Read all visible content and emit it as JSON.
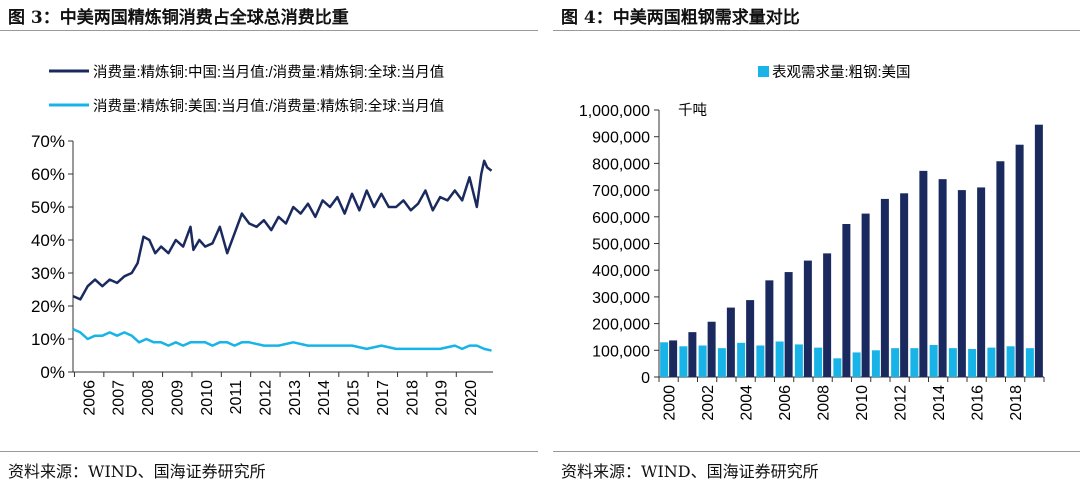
{
  "left": {
    "title": "图 3：中美两国精炼铜消费占全球总消费比重",
    "source": "资料来源：WIND、国海证券研究所"
  },
  "right": {
    "title": "图 4：中美两国粗钢需求量对比",
    "source": "资料来源：WIND、国海证券研究所"
  },
  "colors": {
    "navy": "#1a2a5e",
    "cyan": "#18b4e8"
  },
  "chart_data": [
    {
      "type": "line",
      "title": "",
      "xlabel": "",
      "ylabel": "",
      "ylim": [
        0,
        70
      ],
      "yticks": [
        "0%",
        "10%",
        "20%",
        "30%",
        "40%",
        "50%",
        "60%",
        "70%"
      ],
      "xticks": [
        "2006",
        "2007",
        "2008",
        "2009",
        "2010",
        "2011",
        "2012",
        "2013",
        "2014",
        "2015",
        "2017",
        "2018",
        "2019",
        "2020"
      ],
      "legend_position": "top",
      "series": [
        {
          "name": "消费量:精炼铜:中国:当月值:/消费量:精炼铜:全球:当月值",
          "color": "#1a2a5e",
          "x": [
            2006.0,
            2006.25,
            2006.5,
            2006.75,
            2007.0,
            2007.25,
            2007.5,
            2007.75,
            2008.0,
            2008.2,
            2008.4,
            2008.6,
            2008.8,
            2009.0,
            2009.25,
            2009.5,
            2009.75,
            2010.0,
            2010.1,
            2010.3,
            2010.5,
            2010.75,
            2011.0,
            2011.25,
            2011.5,
            2011.75,
            2012.0,
            2012.25,
            2012.5,
            2012.75,
            2013.0,
            2013.25,
            2013.5,
            2013.75,
            2014.0,
            2014.25,
            2014.5,
            2014.75,
            2015.0,
            2015.25,
            2015.5,
            2015.75,
            2016.0,
            2016.25,
            2016.5,
            2016.75,
            2017.0,
            2017.25,
            2017.5,
            2017.75,
            2018.0,
            2018.25,
            2018.5,
            2018.75,
            2019.0,
            2019.25,
            2019.5,
            2019.75,
            2019.9,
            2020.0,
            2020.1,
            2020.25
          ],
          "values": [
            23,
            22,
            26,
            28,
            26,
            28,
            27,
            29,
            30,
            33,
            41,
            40,
            36,
            38,
            36,
            40,
            38,
            44,
            37,
            40,
            38,
            39,
            44,
            36,
            42,
            48,
            45,
            44,
            46,
            43,
            47,
            45,
            50,
            48,
            51,
            47,
            52,
            50,
            53,
            48,
            54,
            49,
            55,
            50,
            54,
            50,
            50,
            52,
            49,
            51,
            55,
            49,
            53,
            52,
            55,
            52,
            59,
            50,
            60,
            64,
            62,
            61
          ]
        },
        {
          "name": "消费量:精炼铜:美国:当月值:/消费量:精炼铜:全球:当月值",
          "color": "#18b4e8",
          "x": [
            2006.0,
            2006.25,
            2006.5,
            2006.75,
            2007.0,
            2007.25,
            2007.5,
            2007.75,
            2008.0,
            2008.25,
            2008.5,
            2008.75,
            2009.0,
            2009.25,
            2009.5,
            2009.75,
            2010.0,
            2010.25,
            2010.5,
            2010.75,
            2011.0,
            2011.25,
            2011.5,
            2011.75,
            2012.0,
            2012.5,
            2013.0,
            2013.5,
            2014.0,
            2014.5,
            2015.0,
            2015.5,
            2016.0,
            2016.5,
            2017.0,
            2017.5,
            2018.0,
            2018.5,
            2019.0,
            2019.25,
            2019.5,
            2019.75,
            2020.0,
            2020.25
          ],
          "values": [
            13,
            12,
            10,
            11,
            11,
            12,
            11,
            12,
            11,
            9,
            10,
            9,
            9,
            8,
            9,
            8,
            9,
            9,
            9,
            8,
            9,
            9,
            8,
            9,
            9,
            8,
            8,
            9,
            8,
            8,
            8,
            8,
            7,
            8,
            7,
            7,
            7,
            7,
            8,
            7,
            8,
            8,
            7,
            6.5
          ]
        }
      ]
    },
    {
      "type": "bar",
      "title": "",
      "ylabel": "千吨",
      "ylim": [
        0,
        1000000
      ],
      "yticks": [
        "0",
        "100,000",
        "200,000",
        "300,000",
        "400,000",
        "500,000",
        "600,000",
        "700,000",
        "800,000",
        "900,000",
        "1,000,000"
      ],
      "categories": [
        "2000",
        "2001",
        "2002",
        "2003",
        "2004",
        "2005",
        "2006",
        "2007",
        "2008",
        "2009",
        "2010",
        "2011",
        "2012",
        "2013",
        "2014",
        "2015",
        "2016",
        "2017",
        "2018",
        "2019"
      ],
      "xticks": [
        "2000",
        "2002",
        "2004",
        "2006",
        "2008",
        "2010",
        "2012",
        "2014",
        "2016",
        "2018"
      ],
      "legend_position": "top",
      "series": [
        {
          "name": "表观需求量:粗钢:美国",
          "color": "#18b4e8",
          "values": [
            130000,
            115000,
            118000,
            108000,
            128000,
            118000,
            133000,
            122000,
            110000,
            70000,
            92000,
            100000,
            108000,
            108000,
            120000,
            108000,
            105000,
            110000,
            115000,
            108000
          ]
        },
        {
          "name": "",
          "color": "#1a2a5e",
          "values": [
            137000,
            168000,
            207000,
            260000,
            288000,
            362000,
            393000,
            436000,
            463000,
            573000,
            612000,
            667000,
            688000,
            772000,
            741000,
            700000,
            710000,
            808000,
            870000,
            945000
          ]
        }
      ]
    }
  ]
}
